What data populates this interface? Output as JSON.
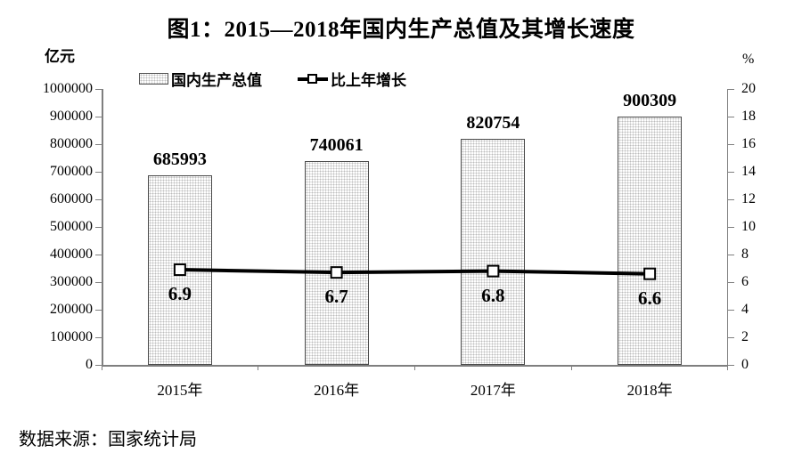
{
  "title": "图1：2015—2018年国内生产总值及其增长速度",
  "left_axis_unit": "亿元",
  "right_axis_unit": "%",
  "legend": [
    {
      "label": "国内生产总值",
      "swatch": "dotted-bar"
    },
    {
      "label": "比上年增长",
      "swatch": "line-with-open-square-marker"
    }
  ],
  "footer": "数据来源：国家统计局",
  "colors": {
    "text": "#000000",
    "axis": "#7f7f7f",
    "bar_border": "#4a4a4a",
    "bar_dot_pattern": "#bdbdbd",
    "line": "#000000",
    "marker_fill": "#ffffff"
  },
  "chart_data": {
    "type": "bar",
    "subtype": "combo bar + line, dual y-axis",
    "title": "图1：2015—2018年国内生产总值及其增长速度",
    "categories": [
      "2015年",
      "2016年",
      "2017年",
      "2018年"
    ],
    "series": [
      {
        "name": "国内生产总值",
        "type": "bar",
        "axis": "left",
        "values": [
          685993,
          740061,
          820754,
          900309
        ],
        "data_labels": [
          "685993",
          "740061",
          "820754",
          "900309"
        ]
      },
      {
        "name": "比上年增长",
        "type": "line",
        "axis": "right",
        "marker": "open-square",
        "values": [
          6.9,
          6.7,
          6.8,
          6.6
        ],
        "data_labels": [
          "6.9",
          "6.7",
          "6.8",
          "6.6"
        ]
      }
    ],
    "left_axis": {
      "unit": "亿元",
      "min": 0,
      "max": 1000000,
      "step": 100000,
      "tick_labels": [
        "0",
        "100000",
        "200000",
        "300000",
        "400000",
        "500000",
        "600000",
        "700000",
        "800000",
        "900000",
        "1000000"
      ]
    },
    "right_axis": {
      "unit": "%",
      "min": 0,
      "max": 20,
      "step": 2,
      "tick_labels": [
        "0",
        "2",
        "4",
        "6",
        "8",
        "10",
        "12",
        "14",
        "16",
        "18",
        "20"
      ]
    },
    "grid": false,
    "legend_position": "top",
    "source": "数据来源：国家统计局"
  }
}
